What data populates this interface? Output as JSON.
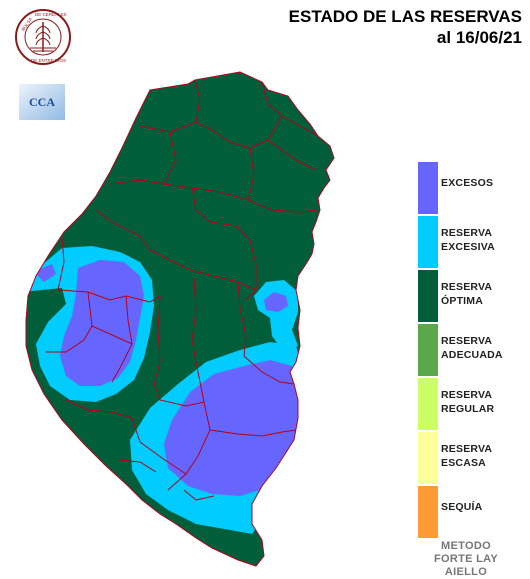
{
  "header": {
    "title_line1": "ESTADO DE LAS RESERVAS",
    "title_line2": "al 16/06/21"
  },
  "logos": {
    "seal_text": "BOLSA DE CEREALES DE ENTRE RIOS",
    "cca_text": "CCA"
  },
  "legend": {
    "items": [
      {
        "label": "EXCESOS",
        "color": "#6666ff"
      },
      {
        "label": "RESERVA\nEXCESIVA",
        "color": "#00ccff"
      },
      {
        "label": "RESERVA\nÓPTIMA",
        "color": "#005f3a"
      },
      {
        "label": "RESERVA\nADECUADA",
        "color": "#5aa849"
      },
      {
        "label": "RESERVA\nREGULAR",
        "color": "#ccff66"
      },
      {
        "label": "RESERVA\nESCASA",
        "color": "#ffff99"
      },
      {
        "label": "SEQUÍA",
        "color": "#ff9933"
      }
    ]
  },
  "method": {
    "line1": "METODO",
    "line2": "FORTE LAY",
    "line3": "AIELLO"
  }
}
